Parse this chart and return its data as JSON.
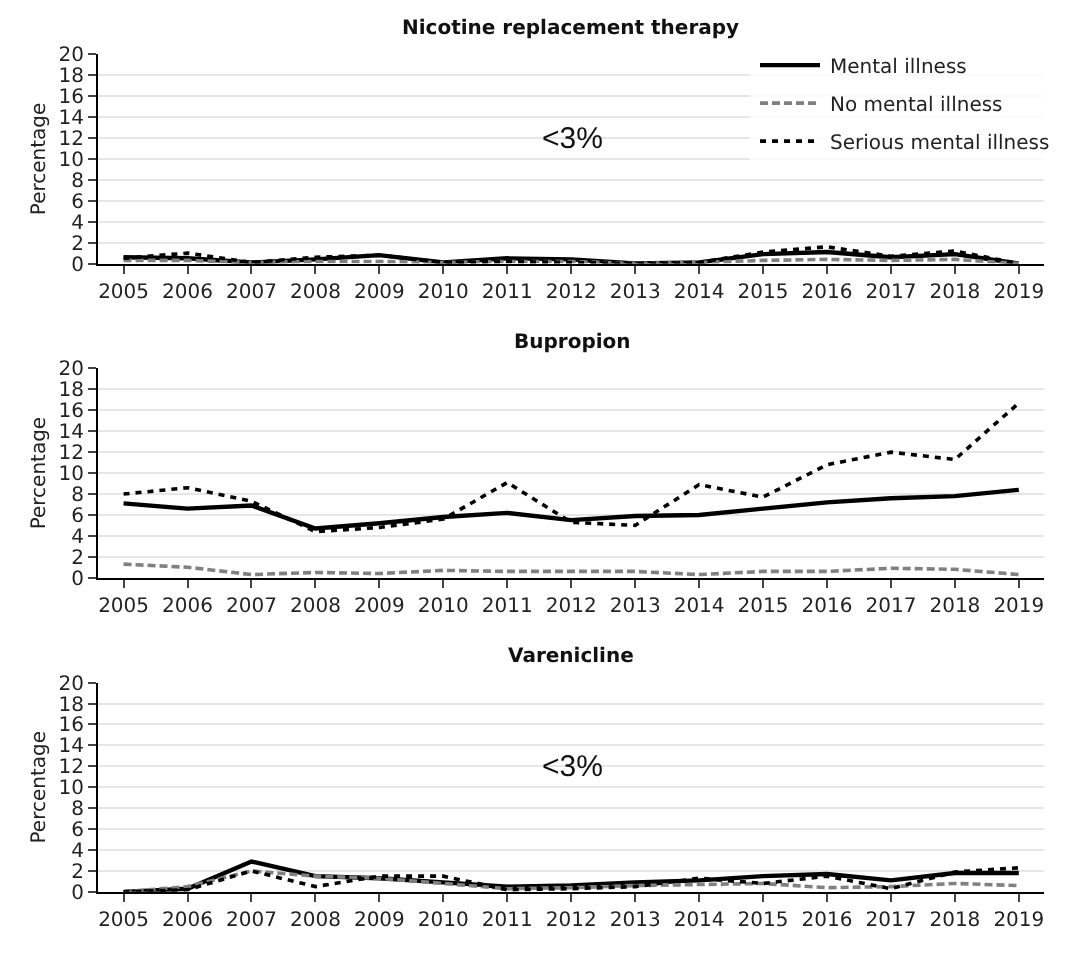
{
  "chart_data": [
    {
      "type": "line",
      "title": "Nicotine replacement therapy",
      "ylabel": "Percentage",
      "annotations": [
        "<3%"
      ],
      "x": [
        2005,
        2006,
        2007,
        2008,
        2009,
        2010,
        2011,
        2012,
        2013,
        2014,
        2015,
        2016,
        2017,
        2018,
        2019
      ],
      "xlim": [
        2004.6,
        2019.4
      ],
      "xticks": [
        2005,
        2006,
        2007,
        2008,
        2009,
        2010,
        2011,
        2012,
        2013,
        2014,
        2015,
        2016,
        2017,
        2018,
        2019
      ],
      "ylim": [
        0,
        20
      ],
      "yticks": [
        0,
        2,
        4,
        6,
        8,
        10,
        12,
        14,
        16,
        18,
        20
      ],
      "grid": "y",
      "legend": "top right",
      "marker": "none",
      "series": [
        {
          "name": "Mental illness",
          "color": "#000000",
          "line_style": "solid",
          "values": [
            0.6,
            0.5,
            0.1,
            0.4,
            0.8,
            0.1,
            0.5,
            0.4,
            0,
            0.1,
            0.9,
            1.1,
            0.6,
            0.9,
            0
          ]
        },
        {
          "name": "No mental illness",
          "color": "#808080",
          "line_style": "dashed",
          "values": [
            0.3,
            0.3,
            0.1,
            0.2,
            0.2,
            0.1,
            0.2,
            0.2,
            0,
            0.1,
            0.3,
            0.4,
            0.3,
            0.4,
            0
          ]
        },
        {
          "name": "Serious mental illness",
          "color": "#000000",
          "line_style": "dotted",
          "values": [
            0.5,
            1.0,
            0.1,
            0.6,
            0.8,
            0.1,
            0.2,
            0.1,
            0,
            0.1,
            1.1,
            1.6,
            0.7,
            1.2,
            0
          ]
        }
      ]
    },
    {
      "type": "line",
      "title": "Bupropion",
      "ylabel": "Percentage",
      "x": [
        2005,
        2006,
        2007,
        2008,
        2009,
        2010,
        2011,
        2012,
        2013,
        2014,
        2015,
        2016,
        2017,
        2018,
        2019
      ],
      "xlim": [
        2004.6,
        2019.4
      ],
      "xticks": [
        2005,
        2006,
        2007,
        2008,
        2009,
        2010,
        2011,
        2012,
        2013,
        2014,
        2015,
        2016,
        2017,
        2018,
        2019
      ],
      "ylim": [
        0,
        20
      ],
      "yticks": [
        0,
        2,
        4,
        6,
        8,
        10,
        12,
        14,
        16,
        18,
        20
      ],
      "grid": "y",
      "marker": "none",
      "series": [
        {
          "color": "#000000",
          "line_style": "solid",
          "values": [
            7.1,
            6.6,
            6.9,
            4.7,
            5.2,
            5.8,
            6.2,
            5.5,
            5.9,
            6.0,
            6.6,
            7.2,
            7.6,
            7.8,
            8.4
          ]
        },
        {
          "color": "#808080",
          "line_style": "dashed",
          "values": [
            1.3,
            1.0,
            0.3,
            0.5,
            0.4,
            0.7,
            0.6,
            0.6,
            0.6,
            0.3,
            0.6,
            0.6,
            0.9,
            0.8,
            0.3
          ]
        },
        {
          "color": "#000000",
          "line_style": "dotted",
          "values": [
            8.0,
            8.6,
            7.3,
            4.4,
            4.8,
            5.6,
            9.1,
            5.3,
            5.0,
            8.9,
            7.7,
            10.8,
            12.0,
            11.3,
            16.7
          ]
        }
      ]
    },
    {
      "type": "line",
      "title": "Varenicline",
      "ylabel": "Percentage",
      "annotations": [
        "<3%"
      ],
      "x": [
        2005,
        2006,
        2007,
        2008,
        2009,
        2010,
        2011,
        2012,
        2013,
        2014,
        2015,
        2016,
        2017,
        2018,
        2019
      ],
      "xlim": [
        2004.6,
        2019.4
      ],
      "xticks": [
        2005,
        2006,
        2007,
        2008,
        2009,
        2010,
        2011,
        2012,
        2013,
        2014,
        2015,
        2016,
        2017,
        2018,
        2019
      ],
      "ylim": [
        0,
        20
      ],
      "yticks": [
        0,
        2,
        4,
        6,
        8,
        10,
        12,
        14,
        16,
        18,
        20
      ],
      "grid": "y",
      "marker": "none",
      "series": [
        {
          "color": "#000000",
          "line_style": "solid",
          "values": [
            0,
            0.3,
            2.9,
            1.5,
            1.3,
            0.9,
            0.5,
            0.6,
            0.9,
            1.1,
            1.5,
            1.7,
            1.1,
            1.8,
            1.8
          ]
        },
        {
          "color": "#808080",
          "line_style": "dashed",
          "values": [
            0,
            0.5,
            2.0,
            1.5,
            1.3,
            0.8,
            0.3,
            0.4,
            0.6,
            0.7,
            0.8,
            0.4,
            0.5,
            0.8,
            0.6
          ]
        },
        {
          "color": "#000000",
          "line_style": "dotted",
          "values": [
            0,
            0.2,
            2.0,
            0.5,
            1.5,
            1.5,
            0.2,
            0.3,
            0.5,
            1.3,
            0.8,
            1.5,
            0.3,
            1.9,
            2.3
          ]
        }
      ]
    }
  ]
}
